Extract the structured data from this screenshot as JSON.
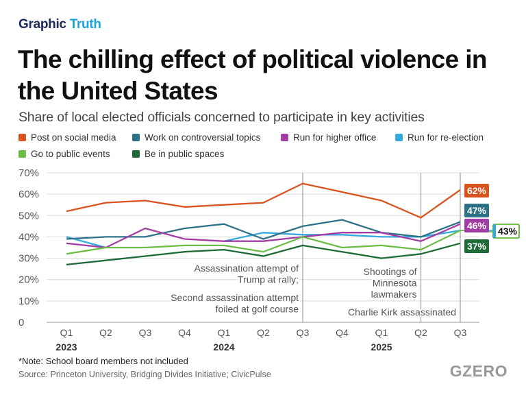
{
  "brand": {
    "part1": "Graphic",
    "part2": "Truth"
  },
  "title": "The chilling effect of political violence in the United States",
  "subtitle": "Share of local elected officials concerned to participate in key activities",
  "footnote": "*Note: School board members not included",
  "source": "Source: Princeton University, Bridging Divides Initiative; CivicPulse",
  "logo": "GZERO",
  "chart_data": {
    "type": "line",
    "categories": [
      "Q1",
      "Q2",
      "Q3",
      "Q4",
      "Q1",
      "Q2",
      "Q3",
      "Q4",
      "Q1",
      "Q2",
      "Q3"
    ],
    "year_labels": [
      {
        "label": "2023",
        "index": 0
      },
      {
        "label": "2024",
        "index": 4
      },
      {
        "label": "2025",
        "index": 8
      }
    ],
    "ylim": [
      0,
      70
    ],
    "yticks": [
      0,
      10,
      20,
      30,
      40,
      50,
      60,
      70
    ],
    "ytick_labels": [
      "0",
      "10%",
      "20%",
      "30%",
      "40%",
      "50%",
      "60%",
      "70%"
    ],
    "grid": true,
    "legend_position": "top",
    "series": [
      {
        "name": "Post on social media",
        "color": "#d9531e",
        "values": [
          52,
          56,
          57,
          54,
          55,
          56,
          65,
          61,
          57,
          49,
          62
        ],
        "end_label": "62%"
      },
      {
        "name": "Work on controversial topics",
        "color": "#2d7287",
        "values": [
          39,
          40,
          40,
          44,
          46,
          39,
          45,
          48,
          42,
          40,
          47
        ],
        "end_label": "47%"
      },
      {
        "name": "Run for higher office",
        "color": "#a23da3",
        "values": [
          37,
          35,
          44,
          39,
          38,
          38,
          40,
          42,
          42,
          38,
          46
        ],
        "end_label": "46%"
      },
      {
        "name": "Run for re-election",
        "color": "#35a9de",
        "values": [
          40,
          35,
          null,
          null,
          38,
          42,
          41,
          41,
          40,
          40,
          43
        ],
        "end_label": "43%"
      },
      {
        "name": "Go to public events",
        "color": "#6cbd45",
        "values": [
          32,
          35,
          35,
          36,
          36,
          33,
          40,
          35,
          36,
          34,
          43
        ],
        "end_label": "43%"
      },
      {
        "name": "Be in public spaces",
        "color": "#1f6b35",
        "values": [
          27,
          29,
          31,
          33,
          34,
          31,
          36,
          33,
          30,
          32,
          37
        ],
        "end_label": "37%"
      }
    ],
    "annotations": [
      {
        "index": 6,
        "lines": [
          "Assassination attempt of",
          "Trump at rally;",
          "Second assassination attempt",
          "foiled at golf course"
        ]
      },
      {
        "index": 9,
        "lines": [
          "Shootings of",
          "Minnesota",
          "lawmakers"
        ]
      },
      {
        "index": 10,
        "lines": [
          "Charlie Kirk assassinated"
        ]
      }
    ]
  }
}
